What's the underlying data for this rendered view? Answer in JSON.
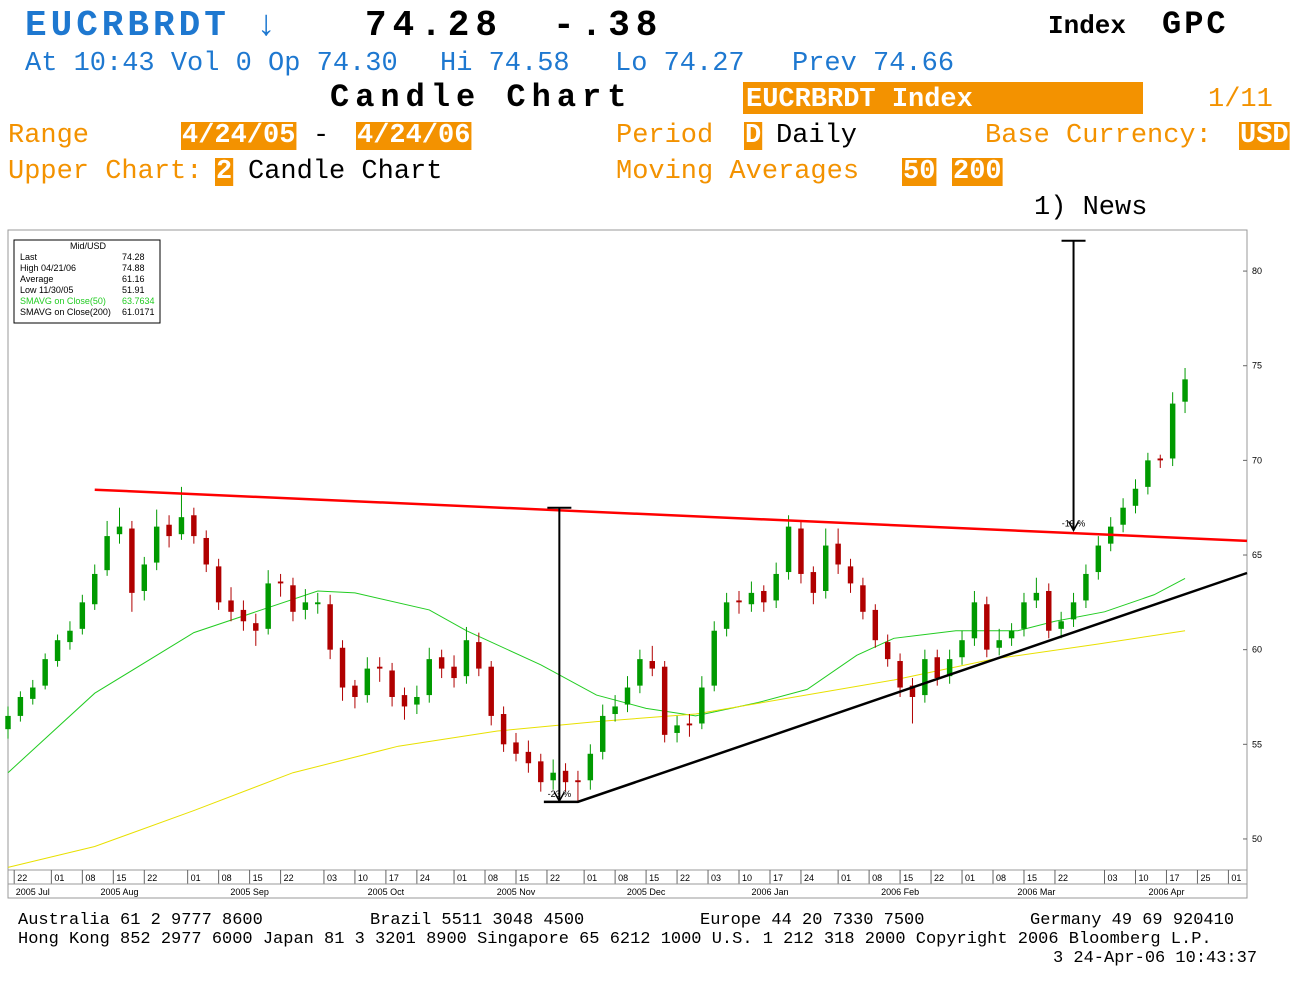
{
  "header": {
    "ticker": "EUCRBRDT ↓",
    "last": "74.28",
    "change": "-.38",
    "index": "Index",
    "source": "GPC",
    "quote": [
      "At 10:43 Vol 0 Op 74.30",
      "Hi 74.58",
      "Lo 74.27",
      "Prev 74.66"
    ],
    "chart_title": "Candle Chart",
    "security": "EUCRBRDT Index",
    "page": "1/11",
    "range_label": "Range",
    "range_start": "4/24/05",
    "range_sep": "-",
    "range_end": "4/24/06",
    "period_label": "Period",
    "period_code": "D",
    "period": "Daily",
    "currency_label": "Base Currency:",
    "currency": "USD",
    "upper_label": "Upper Chart:",
    "upper_code": "2",
    "upper": "Candle Chart",
    "ma_label": "Moving Averages",
    "ma": [
      "50",
      "200"
    ],
    "news": "1) News"
  },
  "chart_data": {
    "type": "candlestick",
    "info": {
      "title": "Mid/USD",
      "rows": [
        {
          "label": "Last",
          "value": "74.28"
        },
        {
          "label": "High  04/21/06",
          "value": "74.88"
        },
        {
          "label": "Average",
          "value": "61.16"
        },
        {
          "label": "Low  11/30/05",
          "value": "51.91"
        }
      ]
    },
    "up_color": "#009a00",
    "down_color": "#b00000",
    "x": [
      0,
      2,
      4,
      6,
      8,
      10,
      12,
      14,
      16,
      18,
      20,
      22,
      24,
      26,
      28,
      30,
      32,
      34,
      36,
      38,
      40,
      42,
      44,
      46,
      48,
      50,
      52,
      54,
      56,
      58,
      60,
      62,
      64,
      66,
      68,
      70,
      72,
      74,
      76,
      78,
      80,
      82,
      84,
      86,
      88,
      90,
      92,
      94,
      96,
      98,
      100,
      102,
      104,
      106,
      108,
      110,
      112,
      114,
      116,
      118,
      120,
      122,
      124,
      126,
      128,
      130,
      132,
      134,
      136,
      138,
      140,
      142,
      144,
      146,
      148,
      150,
      152,
      154,
      156,
      158,
      160,
      162,
      164,
      166,
      168,
      170,
      172,
      174,
      176,
      178,
      180,
      182,
      184,
      186,
      188,
      190
    ],
    "ohlc": [
      [
        55.8,
        57.0,
        55.3,
        56.5
      ],
      [
        56.5,
        57.8,
        56.2,
        57.5
      ],
      [
        57.4,
        58.4,
        57.1,
        58
      ],
      [
        58.1,
        59.8,
        57.9,
        59.5
      ],
      [
        59.4,
        60.8,
        59.1,
        60.5
      ],
      [
        60.4,
        61.5,
        60.0,
        61
      ],
      [
        61.1,
        62.9,
        60.8,
        62.5
      ],
      [
        62.4,
        64.5,
        62.1,
        64
      ],
      [
        64.2,
        66.8,
        63.9,
        66
      ],
      [
        66.1,
        67.5,
        65.6,
        66.5
      ],
      [
        66.4,
        66.8,
        62.0,
        63
      ],
      [
        63.1,
        64.9,
        62.6,
        64.5
      ],
      [
        64.6,
        67.4,
        64.2,
        66.5
      ],
      [
        66.6,
        67.1,
        65.4,
        66
      ],
      [
        66.1,
        68.6,
        65.8,
        67
      ],
      [
        67.1,
        67.5,
        65.6,
        66
      ],
      [
        65.9,
        66.3,
        64.1,
        64.5
      ],
      [
        64.4,
        64.8,
        62.1,
        62.5
      ],
      [
        62.6,
        63.3,
        61.5,
        62
      ],
      [
        62.1,
        62.6,
        61.0,
        61.5
      ],
      [
        61.4,
        61.9,
        60.2,
        61
      ],
      [
        61.1,
        64.2,
        60.8,
        63.5
      ],
      [
        63.6,
        64.0,
        62.8,
        63.5
      ],
      [
        63.4,
        63.8,
        61.5,
        62
      ],
      [
        62.1,
        63.2,
        61.6,
        62.5
      ],
      [
        62.4,
        63.0,
        61.9,
        62.5
      ],
      [
        62.4,
        62.9,
        59.5,
        60
      ],
      [
        60.1,
        60.5,
        57.3,
        58
      ],
      [
        58.1,
        58.4,
        56.9,
        57.5
      ],
      [
        57.6,
        59.6,
        57.2,
        59
      ],
      [
        59.1,
        59.6,
        58.3,
        59
      ],
      [
        58.9,
        59.3,
        57.0,
        57.5
      ],
      [
        57.6,
        58.0,
        56.3,
        57
      ],
      [
        57.1,
        58.1,
        56.6,
        57.5
      ],
      [
        57.6,
        60.1,
        57.2,
        59.5
      ],
      [
        59.6,
        60.0,
        58.5,
        59
      ],
      [
        59.1,
        59.7,
        58.0,
        58.5
      ],
      [
        58.6,
        61.2,
        58.2,
        60.5
      ],
      [
        60.4,
        60.9,
        58.6,
        59
      ],
      [
        59.1,
        59.4,
        56.0,
        56.5
      ],
      [
        56.6,
        57.0,
        54.6,
        55
      ],
      [
        55.1,
        55.6,
        54.1,
        54.5
      ],
      [
        54.6,
        55.2,
        53.5,
        54
      ],
      [
        54.1,
        54.5,
        52.5,
        53
      ],
      [
        53.1,
        54.2,
        52.6,
        53.5
      ],
      [
        53.6,
        54.0,
        52.5,
        53
      ],
      [
        53.1,
        53.6,
        51.9,
        53
      ],
      [
        53.1,
        55.0,
        52.6,
        54.5
      ],
      [
        54.6,
        57.1,
        54.2,
        56.5
      ],
      [
        56.6,
        57.6,
        56.2,
        57
      ],
      [
        57.1,
        58.6,
        56.7,
        58
      ],
      [
        58.1,
        60.0,
        57.7,
        59.5
      ],
      [
        59.4,
        60.2,
        58.6,
        59
      ],
      [
        59.1,
        59.4,
        55.1,
        55.5
      ],
      [
        55.6,
        56.5,
        55.1,
        56
      ],
      [
        56.1,
        56.6,
        55.4,
        56
      ],
      [
        56.1,
        58.6,
        55.8,
        58
      ],
      [
        58.1,
        61.5,
        57.8,
        61
      ],
      [
        61.1,
        63.0,
        60.7,
        62.5
      ],
      [
        62.6,
        63.1,
        61.9,
        62.5
      ],
      [
        62.4,
        63.6,
        62.0,
        63
      ],
      [
        63.1,
        63.4,
        62.0,
        62.5
      ],
      [
        62.6,
        64.6,
        62.2,
        64
      ],
      [
        64.1,
        67.1,
        63.7,
        66.5
      ],
      [
        66.4,
        66.8,
        63.5,
        64
      ],
      [
        64.1,
        64.4,
        62.4,
        63
      ],
      [
        63.1,
        66.4,
        62.7,
        65.5
      ],
      [
        65.6,
        66.4,
        64.0,
        64.5
      ],
      [
        64.4,
        64.8,
        63.0,
        63.5
      ],
      [
        63.4,
        63.8,
        61.6,
        62
      ],
      [
        62.1,
        62.4,
        60.1,
        60.5
      ],
      [
        60.4,
        60.8,
        59.1,
        59.5
      ],
      [
        59.4,
        59.8,
        57.5,
        58
      ],
      [
        58.1,
        58.5,
        56.1,
        57.5
      ],
      [
        57.6,
        60.0,
        57.2,
        59.5
      ],
      [
        59.6,
        60.0,
        58.1,
        58.5
      ],
      [
        58.6,
        60.0,
        58.2,
        59.5
      ],
      [
        59.6,
        61.0,
        59.2,
        60.5
      ],
      [
        60.6,
        63.1,
        60.2,
        62.5
      ],
      [
        62.4,
        62.8,
        59.6,
        60
      ],
      [
        60.1,
        61.1,
        59.7,
        60.5
      ],
      [
        60.6,
        61.4,
        60.2,
        61
      ],
      [
        61.1,
        63.0,
        60.7,
        62.5
      ],
      [
        62.6,
        63.8,
        62.2,
        63
      ],
      [
        63.1,
        63.5,
        60.6,
        61
      ],
      [
        61.1,
        62.0,
        60.6,
        61.5
      ],
      [
        61.6,
        63.0,
        61.2,
        62.5
      ],
      [
        62.6,
        64.5,
        62.2,
        64
      ],
      [
        64.1,
        66.0,
        63.7,
        65.5
      ],
      [
        65.6,
        67.0,
        65.2,
        66.5
      ],
      [
        66.6,
        68.0,
        66.2,
        67.5
      ],
      [
        67.6,
        69.0,
        67.2,
        68.5
      ],
      [
        68.6,
        70.4,
        68.2,
        70
      ],
      [
        70.1,
        70.3,
        69.6,
        70
      ],
      [
        70.1,
        73.6,
        69.7,
        73
      ],
      [
        73.1,
        74.88,
        72.5,
        74.28
      ]
    ],
    "series": [
      {
        "name": "SMAVG on Close(50)",
        "color": "#22cc22",
        "last_label": "63.7634",
        "x": [
          0,
          14,
          30,
          50,
          56,
          68,
          74,
          86,
          95,
          103,
          111,
          121,
          129,
          137,
          143,
          153,
          163,
          169,
          177,
          185,
          190
        ],
        "values": [
          53.5,
          57.7,
          60.9,
          63.1,
          63,
          62.1,
          61,
          59.2,
          57.6,
          56.9,
          56.5,
          57.2,
          57.9,
          59.7,
          60.6,
          61,
          61,
          61.5,
          62,
          62.9,
          63.76
        ]
      },
      {
        "name": "SMAVG on Close(200)",
        "color": "#e8e000",
        "last_label": "61.0171",
        "x": [
          0,
          14,
          30,
          46,
          63,
          79,
          95,
          111,
          127,
          143,
          159,
          176,
          190
        ],
        "values": [
          48.5,
          49.6,
          51.5,
          53.5,
          54.9,
          55.7,
          56.2,
          56.6,
          57.5,
          58.4,
          59.5,
          60.3,
          61.0
        ]
      }
    ],
    "trendlines": [
      {
        "color": "#ff0000",
        "x": [
          14,
          200
        ],
        "values": [
          68.45,
          65.75
        ]
      },
      {
        "color": "#000000",
        "x": [
          86.5,
          92,
          200
        ],
        "values": [
          51.96,
          51.96,
          64.05
        ]
      }
    ],
    "arrows": [
      {
        "x": 89,
        "from": 67.5,
        "to": 52,
        "label": "-23.%"
      },
      {
        "x": 172,
        "from": 81.6,
        "to": 66.3,
        "label": "-19.%"
      }
    ],
    "xlim": [
      0,
      200
    ],
    "ylim": [
      48.36,
      82.17
    ],
    "yticks": [
      50,
      55,
      60,
      65,
      70,
      75,
      80
    ],
    "xticks": [
      {
        "value": 1,
        "label": "22"
      },
      {
        "value": 7,
        "label": "01"
      },
      {
        "value": 12,
        "label": "08"
      },
      {
        "value": 17,
        "label": "15"
      },
      {
        "value": 22,
        "label": "22"
      },
      {
        "value": 29,
        "label": "01"
      },
      {
        "value": 34,
        "label": "08"
      },
      {
        "value": 39,
        "label": "15"
      },
      {
        "value": 44,
        "label": "22"
      },
      {
        "value": 51,
        "label": "03"
      },
      {
        "value": 56,
        "label": "10"
      },
      {
        "value": 61,
        "label": "17"
      },
      {
        "value": 66,
        "label": "24"
      },
      {
        "value": 72,
        "label": "01"
      },
      {
        "value": 77,
        "label": "08"
      },
      {
        "value": 82,
        "label": "15"
      },
      {
        "value": 87,
        "label": "22"
      },
      {
        "value": 93,
        "label": "01"
      },
      {
        "value": 98,
        "label": "08"
      },
      {
        "value": 103,
        "label": "15"
      },
      {
        "value": 108,
        "label": "22"
      },
      {
        "value": 113,
        "label": "03"
      },
      {
        "value": 118,
        "label": "10"
      },
      {
        "value": 123,
        "label": "17"
      },
      {
        "value": 128,
        "label": "24"
      },
      {
        "value": 134,
        "label": "01"
      },
      {
        "value": 139,
        "label": "08"
      },
      {
        "value": 144,
        "label": "15"
      },
      {
        "value": 149,
        "label": "22"
      },
      {
        "value": 154,
        "label": "01"
      },
      {
        "value": 159,
        "label": "08"
      },
      {
        "value": 164,
        "label": "15"
      },
      {
        "value": 169,
        "label": "22"
      },
      {
        "value": 177,
        "label": "03"
      },
      {
        "value": 182,
        "label": "10"
      },
      {
        "value": 187,
        "label": "17"
      },
      {
        "value": 192,
        "label": "25"
      },
      {
        "value": 197,
        "label": "01"
      }
    ],
    "xmonths": [
      {
        "value": 4,
        "label": "2005 Jul"
      },
      {
        "value": 18,
        "label": "2005 Aug"
      },
      {
        "value": 39,
        "label": "2005 Sep"
      },
      {
        "value": 61,
        "label": "2005 Oct"
      },
      {
        "value": 82,
        "label": "2005 Nov"
      },
      {
        "value": 103,
        "label": "2005 Dec"
      },
      {
        "value": 123,
        "label": "2006 Jan"
      },
      {
        "value": 144,
        "label": "2006 Feb"
      },
      {
        "value": 166,
        "label": "2006 Mar"
      },
      {
        "value": 187,
        "label": "2006 Apr"
      }
    ]
  },
  "footer": {
    "rows": [
      [
        "Australia 61 2 9777 8600",
        "Brazil 5511 3048 4500",
        "Europe 44 20 7330 7500",
        "Germany 49 69 920410"
      ],
      [
        "Hong Kong 852 2977 6000 Japan 81 3 3201 8900 Singapore 65 6212 1000 U.S. 1 212 318 2000 Copyright 2006 Bloomberg L.P."
      ],
      [
        "3 24-Apr-06 10:43:37"
      ]
    ]
  }
}
